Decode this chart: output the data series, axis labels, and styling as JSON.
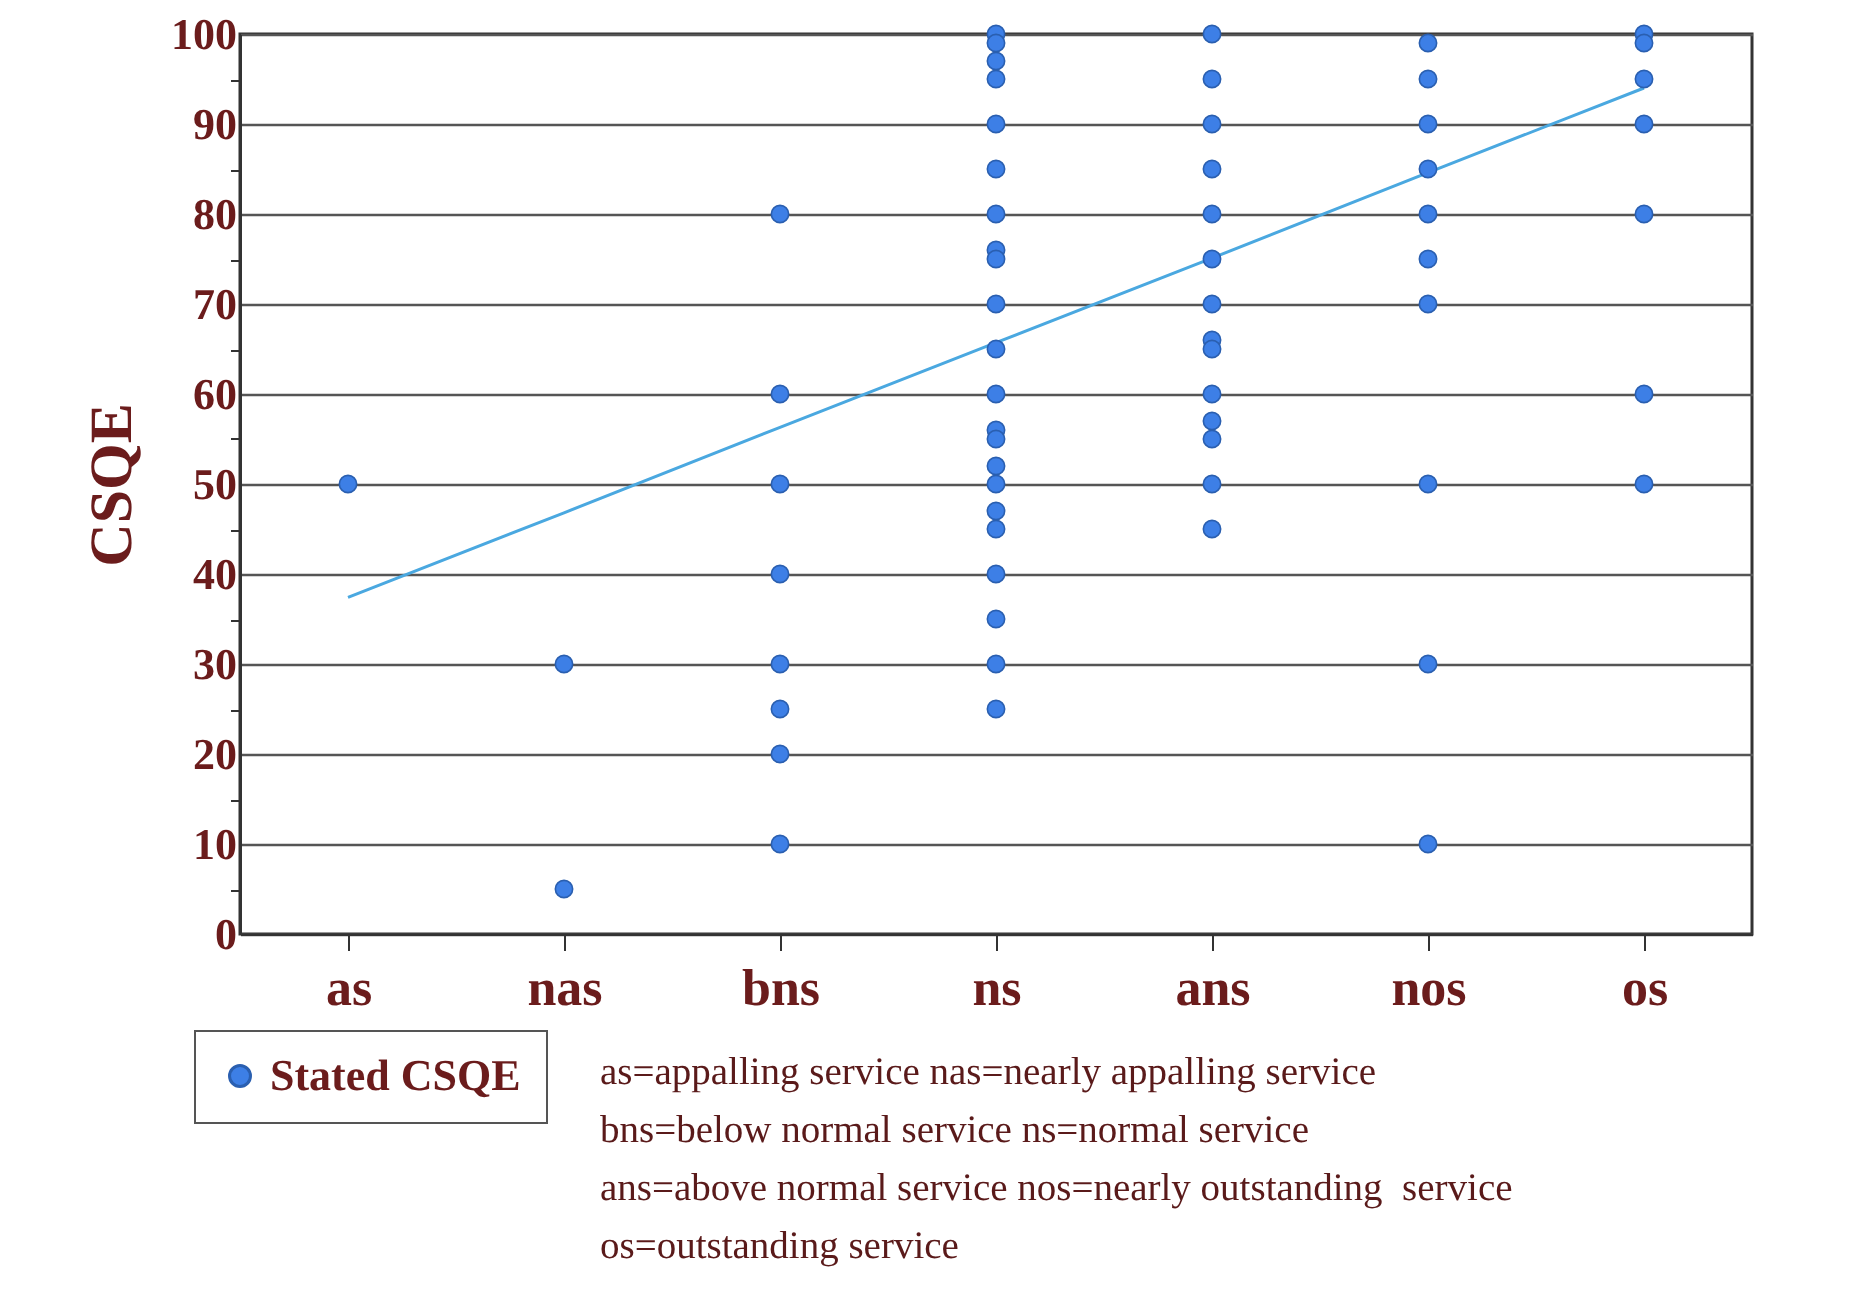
{
  "chart_data": {
    "type": "scatter",
    "ylabel": "CSQE",
    "categories": [
      "as",
      "nas",
      "bns",
      "ns",
      "ans",
      "nos",
      "os"
    ],
    "series": [
      {
        "name": "Stated CSQE",
        "color": "#3d7fe6",
        "marker": "circle",
        "x": [
          "as",
          "nas",
          "nas",
          "bns",
          "bns",
          "bns",
          "bns",
          "bns",
          "bns",
          "bns",
          "bns",
          "ns",
          "ns",
          "ns",
          "ns",
          "ns",
          "ns",
          "ns",
          "ns",
          "ns",
          "ns",
          "ns",
          "ns",
          "ns",
          "ns",
          "ns",
          "ns",
          "ns",
          "ns",
          "ns",
          "ns",
          "ns",
          "ns",
          "ans",
          "ans",
          "ans",
          "ans",
          "ans",
          "ans",
          "ans",
          "ans",
          "ans",
          "ans",
          "ans",
          "ans",
          "ans",
          "ans",
          "nos",
          "nos",
          "nos",
          "nos",
          "nos",
          "nos",
          "nos",
          "nos",
          "nos",
          "nos",
          "os",
          "os",
          "os",
          "os",
          "os",
          "os",
          "os"
        ],
        "values": [
          50,
          30,
          5,
          80,
          60,
          50,
          40,
          30,
          25,
          20,
          10,
          100,
          99,
          97,
          95,
          90,
          85,
          80,
          76,
          75,
          70,
          65,
          60,
          56,
          55,
          52,
          50,
          47,
          45,
          40,
          35,
          30,
          25,
          100,
          95,
          90,
          85,
          80,
          75,
          70,
          66,
          65,
          60,
          57,
          55,
          50,
          45,
          99,
          95,
          90,
          85,
          80,
          75,
          70,
          50,
          30,
          10,
          100,
          99,
          95,
          90,
          80,
          60,
          50
        ]
      },
      {
        "type": "line",
        "color": "#4aa8e0",
        "values": [
          37.4,
          46.8,
          56.3,
          65.7,
          75.1,
          84.6,
          94.0
        ]
      }
    ],
    "ylim": [
      0,
      100
    ],
    "yticks": [
      0,
      {
        "value": 5,
        "label": null
      },
      10,
      {
        "value": 15,
        "label": null
      },
      20,
      {
        "value": 25,
        "label": null
      },
      30,
      {
        "value": 35,
        "label": null
      },
      40,
      {
        "value": 45,
        "label": null
      },
      50,
      {
        "value": 55,
        "label": null
      },
      60,
      {
        "value": 65,
        "label": null
      },
      70,
      {
        "value": 75,
        "label": null
      },
      80,
      {
        "value": 85,
        "label": null
      },
      90,
      {
        "value": 95,
        "label": null
      },
      100
    ],
    "grid": "y",
    "legend": "bottom left",
    "annotations": [
      "as=appalling service nas=nearly appalling service",
      "bns=below normal service ns=normal service",
      "ans=above normal service nos=nearly outstanding  service",
      "os=outstanding service"
    ]
  }
}
